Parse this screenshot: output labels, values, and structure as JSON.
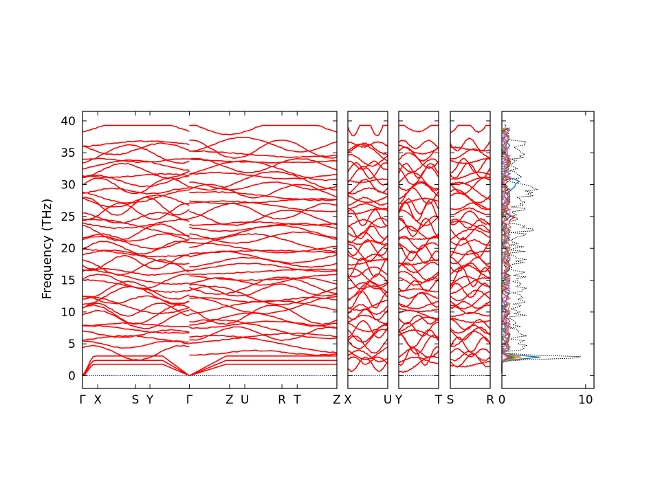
{
  "chart_data": {
    "type": "line",
    "title": "",
    "ylabel": "Frequency (THz)",
    "ylim": [
      -2,
      41.5
    ],
    "yticks": [
      0,
      5,
      10,
      15,
      20,
      25,
      30,
      35,
      40
    ],
    "band_color": "#ff0000",
    "zero_line_color": "#0000ff",
    "panels": [
      {
        "labels": [
          "Γ",
          "X",
          "S",
          "Y",
          "Γ",
          "Z",
          "U",
          "R",
          "T",
          "Z"
        ],
        "label_positions": [
          0,
          0.06,
          0.208,
          0.265,
          0.42,
          0.578,
          0.638,
          0.784,
          0.844,
          1.0
        ],
        "segments": [
          [
            0,
            0.42
          ],
          [
            0.42,
            1.0
          ]
        ]
      },
      {
        "labels": [
          "X",
          "U"
        ],
        "label_positions": [
          0,
          1.0
        ],
        "segments": [
          [
            0,
            1.0
          ]
        ]
      },
      {
        "labels": [
          "Y",
          "T"
        ],
        "label_positions": [
          0,
          1.0
        ],
        "segments": [
          [
            0,
            1.0
          ]
        ]
      },
      {
        "labels": [
          "S",
          "R"
        ],
        "label_positions": [
          0,
          1.0
        ],
        "segments": [
          [
            0,
            1.0
          ]
        ]
      }
    ],
    "dos_panel": {
      "xlim": [
        0,
        11
      ],
      "xticks": [
        0,
        10
      ],
      "total_dos_color": "#000000",
      "peak": {
        "frequency": 2.9,
        "value": 10.2
      },
      "partial_colors": [
        "#1f77b4",
        "#ff7f0e",
        "#2ca02c",
        "#d62728",
        "#9467bd",
        "#8c564b",
        "#e377c2"
      ]
    }
  }
}
